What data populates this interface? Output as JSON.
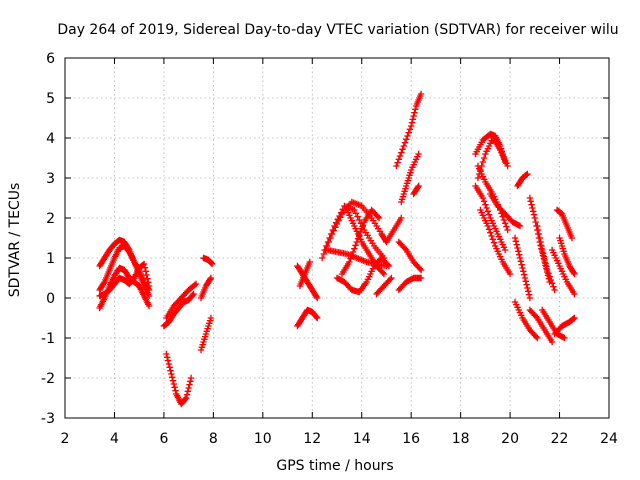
{
  "chart_data": {
    "type": "scatter",
    "title": "Day 264 of 2019, Sidereal Day-to-day VTEC variation (SDTVAR) for receiver wilu",
    "xlabel": "GPS time / hours",
    "ylabel": "SDTVAR / TECUs",
    "xlim": [
      2,
      24
    ],
    "ylim": [
      -3,
      6
    ],
    "xticks": [
      "2",
      "4",
      "6",
      "8",
      "10",
      "12",
      "14",
      "16",
      "18",
      "20",
      "22",
      "24"
    ],
    "yticks": [
      "-3",
      "-2",
      "-1",
      "0",
      "1",
      "2",
      "3",
      "4",
      "5",
      "6"
    ],
    "grid": true,
    "marker": "+",
    "color": "#ff0000",
    "series": [
      {
        "name": "s01",
        "x": [
          3.4,
          3.6,
          3.8,
          4.0,
          4.2,
          4.4,
          4.6,
          4.8,
          5.0,
          5.2,
          5.4
        ],
        "y": [
          0.8,
          1.0,
          1.2,
          1.35,
          1.45,
          1.4,
          1.2,
          0.9,
          0.6,
          0.3,
          0.05
        ]
      },
      {
        "name": "s02",
        "x": [
          3.4,
          3.6,
          3.8,
          4.0,
          4.2,
          4.4,
          4.6,
          4.8,
          5.0,
          5.2,
          5.4
        ],
        "y": [
          0.2,
          0.4,
          0.7,
          1.0,
          1.25,
          1.3,
          1.15,
          0.9,
          0.7,
          0.4,
          0.2
        ]
      },
      {
        "name": "s03",
        "x": [
          3.4,
          3.6,
          3.8,
          4.0,
          4.2,
          4.4,
          4.6,
          4.8,
          5.0,
          5.2,
          5.4
        ],
        "y": [
          -0.25,
          0.0,
          0.3,
          0.55,
          0.75,
          0.7,
          0.5,
          0.4,
          0.3,
          0.05,
          -0.2
        ]
      },
      {
        "name": "s04",
        "x": [
          3.4,
          3.6,
          3.8,
          4.0,
          4.2,
          4.4,
          4.6,
          4.8,
          5.0,
          5.2,
          5.4
        ],
        "y": [
          0.05,
          0.1,
          0.2,
          0.35,
          0.5,
          0.45,
          0.35,
          0.5,
          0.75,
          0.85,
          0.3
        ]
      },
      {
        "name": "s05",
        "x": [
          6.1,
          6.3,
          6.5,
          6.7,
          6.9,
          7.1
        ],
        "y": [
          -1.4,
          -1.9,
          -2.4,
          -2.65,
          -2.5,
          -2.0
        ]
      },
      {
        "name": "s06",
        "x": [
          6.1,
          6.4,
          6.7,
          7.0,
          7.3
        ],
        "y": [
          -0.5,
          -0.2,
          0.0,
          0.2,
          0.35
        ]
      },
      {
        "name": "s07",
        "x": [
          6.0,
          6.2,
          6.4,
          6.6,
          6.8,
          7.0,
          7.2
        ],
        "y": [
          -0.7,
          -0.6,
          -0.4,
          -0.25,
          -0.1,
          -0.05,
          0.1
        ]
      },
      {
        "name": "s08",
        "x": [
          7.5,
          7.7,
          7.9
        ],
        "y": [
          -1.3,
          -0.9,
          -0.5
        ]
      },
      {
        "name": "s09",
        "x": [
          7.5,
          7.7,
          7.9
        ],
        "y": [
          0.0,
          0.3,
          0.5
        ]
      },
      {
        "name": "s10",
        "x": [
          7.6,
          7.8,
          7.95
        ],
        "y": [
          1.0,
          0.95,
          0.85
        ]
      },
      {
        "name": "s11",
        "x": [
          11.4,
          11.6,
          11.8,
          12.0,
          12.2
        ],
        "y": [
          0.8,
          0.6,
          0.4,
          0.2,
          0.0
        ]
      },
      {
        "name": "s12",
        "x": [
          11.4,
          11.6,
          11.8,
          12.0,
          12.2
        ],
        "y": [
          -0.7,
          -0.5,
          -0.3,
          -0.35,
          -0.5
        ]
      },
      {
        "name": "s13",
        "x": [
          11.5,
          11.7,
          11.9
        ],
        "y": [
          0.3,
          0.6,
          0.9
        ]
      },
      {
        "name": "s14",
        "x": [
          12.4,
          12.8,
          13.2,
          13.6,
          14.0,
          14.4,
          14.8,
          15.0
        ],
        "y": [
          1.0,
          1.6,
          2.1,
          2.4,
          2.3,
          2.0,
          1.6,
          1.4
        ]
      },
      {
        "name": "s15",
        "x": [
          12.5,
          12.9,
          13.3,
          13.7,
          14.1,
          14.5,
          14.9
        ],
        "y": [
          1.2,
          1.8,
          2.3,
          2.2,
          1.7,
          1.3,
          1.0
        ]
      },
      {
        "name": "s16",
        "x": [
          12.6,
          13.0,
          13.4,
          13.8,
          14.2,
          14.6,
          15.0
        ],
        "y": [
          1.2,
          1.15,
          1.1,
          1.0,
          0.9,
          0.85,
          0.8
        ]
      },
      {
        "name": "s17",
        "x": [
          13.0,
          13.3,
          13.6,
          13.9,
          14.2,
          14.5,
          14.8,
          15.1
        ],
        "y": [
          0.5,
          0.4,
          0.2,
          0.15,
          0.4,
          0.8,
          1.0,
          0.8
        ]
      },
      {
        "name": "s18",
        "x": [
          13.4,
          13.7,
          14.0,
          14.3,
          14.6,
          14.9
        ],
        "y": [
          2.2,
          1.8,
          1.4,
          1.1,
          0.8,
          0.6
        ]
      },
      {
        "name": "s19",
        "x": [
          13.2,
          13.5,
          13.8,
          14.1,
          14.4,
          14.7
        ],
        "y": [
          0.6,
          0.9,
          1.4,
          1.9,
          2.2,
          2.0
        ]
      },
      {
        "name": "s20",
        "x": [
          14.6,
          14.9,
          15.2
        ],
        "y": [
          0.1,
          0.3,
          0.5
        ]
      },
      {
        "name": "s21",
        "x": [
          15.0,
          15.3,
          15.6
        ],
        "y": [
          1.4,
          1.7,
          2.0
        ]
      },
      {
        "name": "s22",
        "x": [
          15.5,
          15.8,
          16.1,
          16.4
        ],
        "y": [
          1.4,
          1.2,
          0.9,
          0.7
        ]
      },
      {
        "name": "s23",
        "x": [
          15.5,
          15.8,
          16.1,
          16.4
        ],
        "y": [
          0.2,
          0.4,
          0.5,
          0.5
        ]
      },
      {
        "name": "s24",
        "x": [
          15.4,
          15.7,
          16.0,
          16.2,
          16.4
        ],
        "y": [
          3.3,
          3.8,
          4.3,
          4.8,
          5.1
        ]
      },
      {
        "name": "s25",
        "x": [
          15.6,
          15.8,
          16.0,
          16.3
        ],
        "y": [
          2.4,
          2.8,
          3.2,
          3.6
        ]
      },
      {
        "name": "s26",
        "x": [
          16.1,
          16.3
        ],
        "y": [
          2.6,
          2.8
        ]
      },
      {
        "name": "s27",
        "x": [
          18.6,
          18.9,
          19.2,
          19.4,
          19.6,
          19.8
        ],
        "y": [
          3.6,
          3.95,
          4.1,
          4.05,
          3.8,
          3.4
        ]
      },
      {
        "name": "s28",
        "x": [
          18.7,
          19.0,
          19.3,
          19.6,
          19.9
        ],
        "y": [
          3.0,
          3.6,
          4.0,
          3.7,
          3.3
        ]
      },
      {
        "name": "s29",
        "x": [
          18.6,
          18.9,
          19.2,
          19.5,
          19.8
        ],
        "y": [
          2.8,
          2.5,
          2.0,
          1.6,
          1.2
        ]
      },
      {
        "name": "s30",
        "x": [
          18.7,
          19.0,
          19.3,
          19.6,
          19.9
        ],
        "y": [
          3.3,
          2.9,
          2.6,
          2.2,
          1.7
        ]
      },
      {
        "name": "s31",
        "x": [
          18.8,
          19.1,
          19.4,
          19.7,
          20.0
        ],
        "y": [
          2.2,
          1.8,
          1.3,
          0.9,
          0.6
        ]
      },
      {
        "name": "s32",
        "x": [
          19.2,
          19.5,
          19.8,
          20.1,
          20.4
        ],
        "y": [
          2.6,
          2.3,
          2.1,
          1.9,
          1.8
        ]
      },
      {
        "name": "s33",
        "x": [
          20.2,
          20.4,
          20.6,
          20.8
        ],
        "y": [
          1.5,
          1.0,
          0.5,
          0.0
        ]
      },
      {
        "name": "s34",
        "x": [
          20.3,
          20.5,
          20.7
        ],
        "y": [
          2.8,
          3.0,
          3.1
        ]
      },
      {
        "name": "s35",
        "x": [
          20.2,
          20.5,
          20.8,
          21.1
        ],
        "y": [
          -0.1,
          -0.5,
          -0.8,
          -1.0
        ]
      },
      {
        "name": "s36",
        "x": [
          20.8,
          21.1,
          21.4,
          21.7
        ],
        "y": [
          -0.3,
          -0.5,
          -0.8,
          -1.1
        ]
      },
      {
        "name": "s37",
        "x": [
          20.8,
          21.0,
          21.2,
          21.4,
          21.6
        ],
        "y": [
          2.5,
          2.0,
          1.4,
          0.9,
          0.4
        ]
      },
      {
        "name": "s38",
        "x": [
          21.1,
          21.3,
          21.5,
          21.8
        ],
        "y": [
          1.8,
          1.2,
          0.7,
          0.2
        ]
      },
      {
        "name": "s39",
        "x": [
          21.3,
          21.6,
          21.9,
          22.2
        ],
        "y": [
          -0.3,
          -0.6,
          -0.9,
          -1.0
        ]
      },
      {
        "name": "s40",
        "x": [
          21.7,
          22.0,
          22.3,
          22.6
        ],
        "y": [
          1.2,
          0.8,
          0.4,
          0.1
        ]
      },
      {
        "name": "s41",
        "x": [
          21.8,
          22.1,
          22.4,
          22.6
        ],
        "y": [
          -0.9,
          -0.7,
          -0.6,
          -0.5
        ]
      },
      {
        "name": "s42",
        "x": [
          21.9,
          22.1,
          22.3,
          22.5
        ],
        "y": [
          2.2,
          2.1,
          1.8,
          1.5
        ]
      },
      {
        "name": "s43",
        "x": [
          22.0,
          22.2,
          22.4,
          22.6
        ],
        "y": [
          1.5,
          1.1,
          0.8,
          0.6
        ]
      }
    ]
  }
}
